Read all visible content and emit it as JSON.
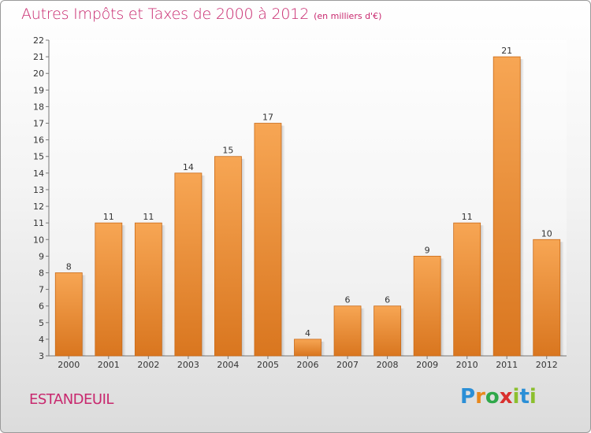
{
  "title": {
    "main": "Autres Impôts et Taxes de 2000 à 2012",
    "unit": "(en milliers d'€)"
  },
  "commune": "ESTANDEUIL",
  "logo": {
    "letters": [
      "P",
      "r",
      "o",
      "x",
      "i",
      "t",
      "i"
    ],
    "text": "Proxiti"
  },
  "colors": {
    "title": "#c8286e",
    "bar_light": "#f7a654",
    "bar_dark": "#d9761f"
  },
  "chart_data": {
    "type": "bar",
    "categories": [
      "2000",
      "2001",
      "2002",
      "2003",
      "2004",
      "2005",
      "2006",
      "2007",
      "2008",
      "2009",
      "2010",
      "2011",
      "2012"
    ],
    "values": [
      8,
      11,
      11,
      14,
      15,
      17,
      4,
      6,
      6,
      9,
      11,
      21,
      10
    ],
    "ylim": [
      3,
      22
    ],
    "yticks": [
      3,
      4,
      5,
      6,
      7,
      8,
      9,
      10,
      11,
      12,
      13,
      14,
      15,
      16,
      17,
      18,
      19,
      20,
      21,
      22
    ],
    "grid": false,
    "legend": "none"
  }
}
